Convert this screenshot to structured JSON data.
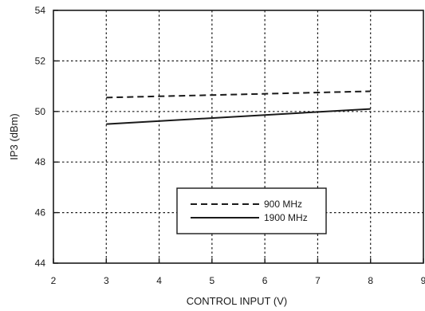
{
  "chart_data": {
    "type": "line",
    "title": "",
    "xlabel": "CONTROL INPUT (V)",
    "ylabel": "IP3 (dBm)",
    "xlim": [
      2,
      9
    ],
    "ylim": [
      44,
      54
    ],
    "xticks": [
      2,
      3,
      4,
      5,
      6,
      7,
      8,
      9
    ],
    "yticks": [
      44,
      46,
      48,
      50,
      52,
      54
    ],
    "grid": true,
    "grid_style": "dotted",
    "legend_position": "bottom-center",
    "series": [
      {
        "name": "900 MHz",
        "style": "dashed",
        "color": "#1a1a1a",
        "x": [
          3,
          8
        ],
        "y": [
          50.55,
          50.8
        ]
      },
      {
        "name": "1900 MHz",
        "style": "solid",
        "color": "#1a1a1a",
        "x": [
          3,
          8
        ],
        "y": [
          49.5,
          50.1
        ]
      }
    ]
  }
}
